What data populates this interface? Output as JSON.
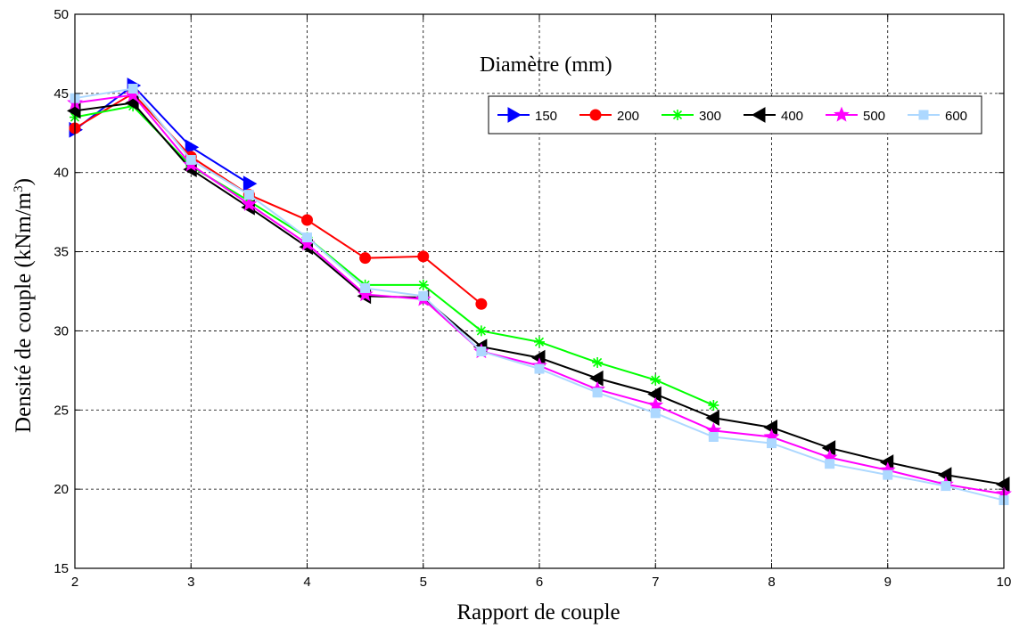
{
  "chart_data": {
    "type": "line",
    "xlabel": "Rapport de couple",
    "ylabel": "Densité de couple (kNm/m",
    "ylabel_sup": "3",
    "ylabel_end": ")",
    "annotation": "Diamètre (mm)",
    "xlim": [
      2,
      10
    ],
    "ylim": [
      15,
      50
    ],
    "xticks": [
      "2",
      "3",
      "4",
      "5",
      "6",
      "7",
      "8",
      "9",
      "10"
    ],
    "yticks": [
      "15",
      "20",
      "25",
      "30",
      "35",
      "40",
      "45",
      "50"
    ],
    "grid": true,
    "legend_position": "top-right",
    "series": [
      {
        "name": "150",
        "color": "#0000ff",
        "marker": "triangle-right",
        "x": [
          2,
          2.5,
          3,
          3.5
        ],
        "y": [
          42.7,
          45.5,
          41.6,
          39.3
        ]
      },
      {
        "name": "200",
        "color": "#ff0000",
        "marker": "circle",
        "x": [
          2,
          2.5,
          3,
          3.5,
          4,
          4.5,
          5,
          5.5
        ],
        "y": [
          42.8,
          45.0,
          41.0,
          38.6,
          37.0,
          34.6,
          34.7,
          31.7
        ]
      },
      {
        "name": "300",
        "color": "#00ff00",
        "marker": "asterisk",
        "x": [
          2,
          2.5,
          3,
          3.5,
          4,
          4.5,
          5,
          5.5,
          6,
          6.5,
          7,
          7.5
        ],
        "y": [
          43.5,
          44.2,
          40.4,
          38.2,
          35.9,
          32.9,
          32.9,
          30.0,
          29.3,
          28.0,
          26.9,
          25.3
        ]
      },
      {
        "name": "400",
        "color": "#000000",
        "marker": "triangle-left",
        "x": [
          2,
          2.5,
          3,
          3.5,
          4,
          4.5,
          5,
          5.5,
          6,
          6.5,
          7,
          7.5,
          8,
          8.5,
          9,
          9.5,
          10
        ],
        "y": [
          43.9,
          44.4,
          40.2,
          37.8,
          35.3,
          32.2,
          32.1,
          29.0,
          28.3,
          27.0,
          26.0,
          24.5,
          23.9,
          22.6,
          21.7,
          20.9,
          20.3
        ]
      },
      {
        "name": "500",
        "color": "#ff00ff",
        "marker": "star",
        "x": [
          2,
          2.5,
          3,
          3.5,
          4,
          4.5,
          5,
          5.5,
          6,
          6.5,
          7,
          7.5,
          8,
          8.5,
          9,
          9.5,
          10
        ],
        "y": [
          44.4,
          44.9,
          40.5,
          38.0,
          35.5,
          32.3,
          32.0,
          28.7,
          27.8,
          26.3,
          25.3,
          23.7,
          23.3,
          22.0,
          21.2,
          20.3,
          19.7
        ]
      },
      {
        "name": "600",
        "color": "#add8ff",
        "marker": "square",
        "x": [
          2,
          2.5,
          3,
          3.5,
          4,
          4.5,
          5,
          5.5,
          6,
          6.5,
          7,
          7.5,
          8,
          8.5,
          9,
          9.5,
          10
        ],
        "y": [
          44.7,
          45.3,
          40.8,
          38.6,
          35.9,
          32.7,
          32.2,
          28.7,
          27.6,
          26.1,
          24.8,
          23.3,
          22.9,
          21.6,
          20.9,
          20.2,
          19.3
        ]
      }
    ]
  }
}
